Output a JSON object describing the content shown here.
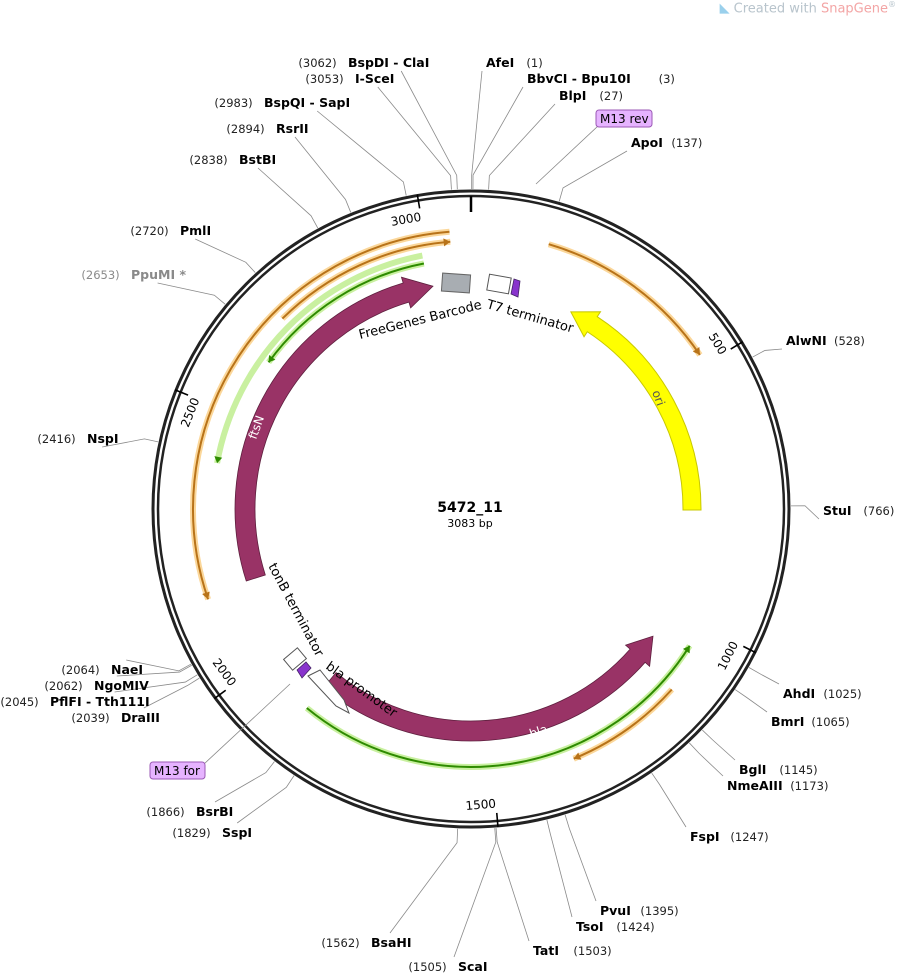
{
  "watermark": {
    "prefix": "Created with",
    "brand": "SnapGene",
    "mark": "®"
  },
  "plasmid": {
    "name": "5472_11",
    "size_label": "3083 bp",
    "length": 3083
  },
  "ticks": [
    {
      "bp": 500,
      "label": "500"
    },
    {
      "bp": 1000,
      "label": "1000"
    },
    {
      "bp": 1500,
      "label": "1500"
    },
    {
      "bp": 2000,
      "label": "2000"
    },
    {
      "bp": 2500,
      "label": "2500"
    },
    {
      "bp": 3000,
      "label": "3000"
    }
  ],
  "sites": [
    {
      "pos": "(1)",
      "name": "AfeI",
      "bp": 1
    },
    {
      "pos": "(3)",
      "name": "BbvCI  -  Bpu10I",
      "bp": 3
    },
    {
      "pos": "(27)",
      "name": "BlpI",
      "bp": 27
    },
    {
      "pos": "(137)",
      "name": "ApoI",
      "bp": 137
    },
    {
      "pos": "(528)",
      "name": "AlwNI",
      "bp": 528
    },
    {
      "pos": "(766)",
      "name": "StuI",
      "bp": 766
    },
    {
      "pos": "(1025)",
      "name": "AhdI",
      "bp": 1025
    },
    {
      "pos": "(1065)",
      "name": "BmrI",
      "bp": 1065
    },
    {
      "pos": "(1145)",
      "name": "BglI",
      "bp": 1145
    },
    {
      "pos": "(1173)",
      "name": "NmeAIII",
      "bp": 1173
    },
    {
      "pos": "(1247)",
      "name": "FspI",
      "bp": 1247
    },
    {
      "pos": "(1395)",
      "name": "PvuI",
      "bp": 1395
    },
    {
      "pos": "(1424)",
      "name": "TsoI",
      "bp": 1424
    },
    {
      "pos": "(1503)",
      "name": "TatI",
      "bp": 1503
    },
    {
      "pos": "(1505)",
      "name": "ScaI",
      "bp": 1505
    },
    {
      "pos": "(1562)",
      "name": "BsaHI",
      "bp": 1562
    },
    {
      "pos": "(1829)",
      "name": "SspI",
      "bp": 1829
    },
    {
      "pos": "(1866)",
      "name": "BsrBI",
      "bp": 1866
    },
    {
      "pos": "(2039)",
      "name": "DraIII",
      "bp": 2039
    },
    {
      "pos": "(2045)",
      "name": "PflFI  -  Tth111I",
      "bp": 2045
    },
    {
      "pos": "(2062)",
      "name": "NgoMIV",
      "bp": 2062
    },
    {
      "pos": "(2064)",
      "name": "NaeI",
      "bp": 2064
    },
    {
      "pos": "(2416)",
      "name": "NspI",
      "bp": 2416
    },
    {
      "pos": "(2653)",
      "name": "PpuMI *",
      "bp": 2653,
      "grey": true
    },
    {
      "pos": "(2720)",
      "name": "PmlI",
      "bp": 2720
    },
    {
      "pos": "(2838)",
      "name": "BstBI",
      "bp": 2838
    },
    {
      "pos": "(2894)",
      "name": "RsrII",
      "bp": 2894
    },
    {
      "pos": "(2983)",
      "name": "BspQI  -  SapI",
      "bp": 2983
    },
    {
      "pos": "(3053)",
      "name": "I-SceI",
      "bp": 3053
    },
    {
      "pos": "(3062)",
      "name": "BspDI  -  ClaI",
      "bp": 3062
    }
  ],
  "features": [
    {
      "name": "ori",
      "type": "rep_origin",
      "color": "#ffff00",
      "stroke": "#c8c800"
    },
    {
      "name": "bla",
      "type": "cds",
      "color": "#993366"
    },
    {
      "name": "ftsN",
      "type": "cds",
      "color": "#993366"
    },
    {
      "name": "FreeGenes Barcode",
      "type": "misc",
      "color": "#a8adb2"
    },
    {
      "name": "T7 terminator",
      "type": "terminator",
      "color": "#ffffff"
    },
    {
      "name": "tonB terminator",
      "type": "terminator",
      "color": "#ffffff"
    },
    {
      "name": "bla promoter",
      "type": "promoter",
      "color": "#ffffff"
    }
  ],
  "primers": [
    {
      "name": "M13 rev",
      "color": "#e6b3ff"
    },
    {
      "name": "M13 for",
      "color": "#e6b3ff"
    }
  ],
  "colors": {
    "backbone": "#222222",
    "orange_arc": "#b87319",
    "orange_glow": "#fbd79a",
    "green_arc": "#2e8b00",
    "green_glow": "#c9f0a0",
    "primer_site": "#8833cc"
  }
}
